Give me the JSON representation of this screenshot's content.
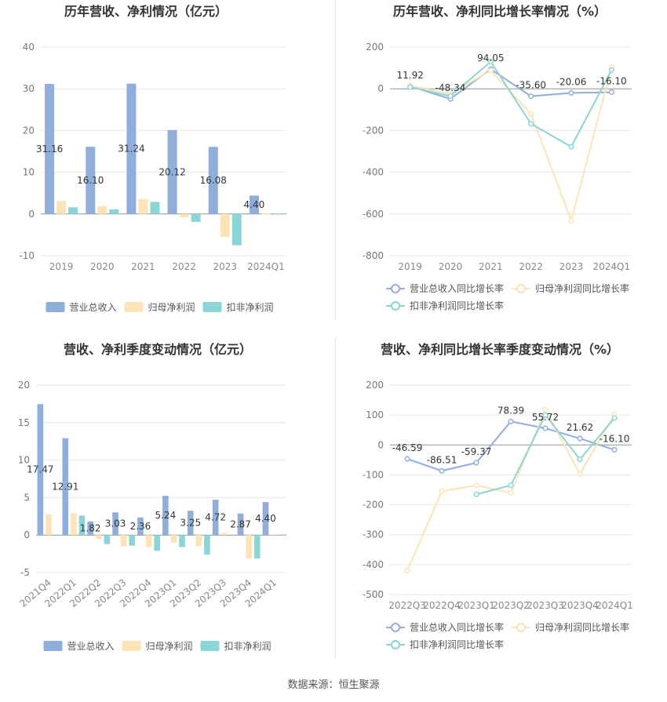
{
  "source": "数据来源：恒生聚源",
  "colors": {
    "revenue": "#8eaedc",
    "net": "#fde3b5",
    "deducted": "#8ad6d6"
  },
  "chart_data": [
    {
      "type": "bar",
      "title": "历年营收、净利情况（亿元）",
      "categories": [
        "2019",
        "2020",
        "2021",
        "2022",
        "2023",
        "2024Q1"
      ],
      "ylim": [
        -10,
        40
      ],
      "yticks": [
        -10,
        0,
        10,
        20,
        30,
        40
      ],
      "series": [
        {
          "name": "营业总收入",
          "values": [
            31.16,
            16.1,
            31.24,
            20.12,
            16.08,
            4.4
          ],
          "labels": [
            "31.16",
            "16.10",
            "31.24",
            "20.12",
            "16.08",
            "4.40"
          ]
        },
        {
          "name": "归母净利润",
          "values": [
            3.1,
            1.9,
            3.6,
            -0.8,
            -5.5,
            0.1
          ]
        },
        {
          "name": "扣非净利润",
          "values": [
            1.6,
            1.1,
            2.9,
            -1.9,
            -7.5,
            0.05
          ]
        }
      ],
      "legend": "bottom"
    },
    {
      "type": "line",
      "title": "历年营收、净利同比增长率情况（%）",
      "categories": [
        "2019",
        "2020",
        "2021",
        "2022",
        "2023",
        "2024Q1"
      ],
      "ylim": [
        -800,
        200
      ],
      "yticks": [
        -800,
        -600,
        -400,
        -200,
        0,
        200
      ],
      "series": [
        {
          "name": "营业总收入同比增长率",
          "values": [
            11.92,
            -48.34,
            94.05,
            -35.6,
            -20.06,
            -16.1
          ],
          "labels": [
            "11.92",
            "-48.34",
            "94.05",
            "-35.60",
            "-20.06",
            "-16.10"
          ]
        },
        {
          "name": "归母净利润同比增长率",
          "values": [
            15,
            -25,
            88,
            -120,
            -632,
            105
          ]
        },
        {
          "name": "扣非净利润同比增长率",
          "values": [
            8,
            -35,
            130,
            -168,
            -278,
            90
          ]
        }
      ],
      "legend": "bottom"
    },
    {
      "type": "bar",
      "title": "营收、净利季度变动情况（亿元）",
      "categories": [
        "2021Q4",
        "2022Q1",
        "2022Q2",
        "2022Q3",
        "2022Q4",
        "2023Q1",
        "2023Q2",
        "2023Q3",
        "2023Q4",
        "2024Q1"
      ],
      "ylim": [
        -5,
        20
      ],
      "yticks": [
        -5,
        0,
        5,
        10,
        15,
        20
      ],
      "series": [
        {
          "name": "营业总收入",
          "values": [
            17.47,
            12.91,
            1.82,
            3.03,
            2.36,
            5.24,
            3.25,
            4.72,
            2.87,
            4.4
          ],
          "labels": [
            "17.47",
            "12.91",
            "1.82",
            "3.03",
            "2.36",
            "5.24",
            "3.25",
            "4.72",
            "2.87",
            "4.40"
          ]
        },
        {
          "name": "归母净利润",
          "values": [
            2.8,
            2.9,
            -0.5,
            -1.5,
            -1.6,
            -1.0,
            -1.5,
            0.3,
            -3.1,
            0.1
          ]
        },
        {
          "name": "扣非净利润",
          "values": [
            0,
            2.6,
            -1.2,
            -1.4,
            -2.1,
            -1.6,
            -2.6,
            -0.1,
            -3.1,
            0.05
          ]
        }
      ],
      "legend": "bottom"
    },
    {
      "type": "line",
      "title": "营收、净利同比增长率季度变动情况（%）",
      "categories": [
        "2022Q3",
        "2022Q4",
        "2023Q1",
        "2023Q2",
        "2023Q3",
        "2023Q4",
        "2024Q1"
      ],
      "ylim": [
        -500,
        200
      ],
      "yticks": [
        -500,
        -400,
        -300,
        -200,
        -100,
        0,
        100,
        200
      ],
      "series": [
        {
          "name": "营业总收入同比增长率",
          "values": [
            -46.59,
            -86.51,
            -59.37,
            78.39,
            55.72,
            21.62,
            -16.1
          ],
          "labels": [
            "-46.59",
            "-86.51",
            "-59.37",
            "78.39",
            "55.72",
            "21.62",
            "-16.10"
          ]
        },
        {
          "name": "归母净利润同比增长率",
          "values": [
            -420,
            -155,
            -135,
            -160,
            118,
            -97,
            103
          ]
        },
        {
          "name": "扣非净利润同比增长率",
          "values": [
            null,
            null,
            -165,
            -135,
            100,
            -48,
            90
          ]
        }
      ],
      "legend": "bottom"
    }
  ]
}
